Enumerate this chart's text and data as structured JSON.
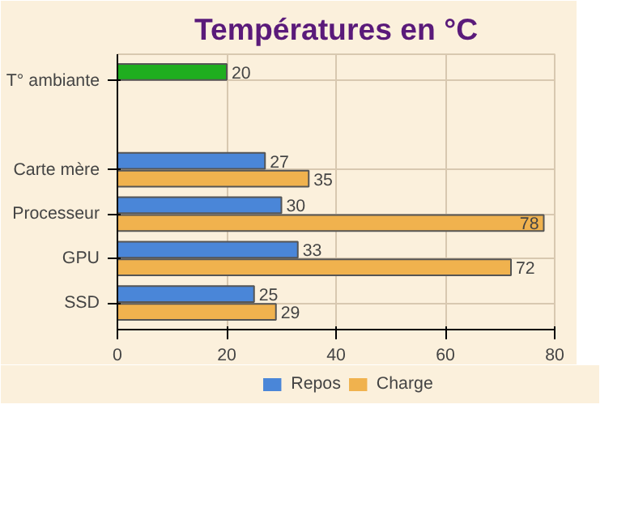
{
  "chart_data": {
    "type": "bar",
    "orientation": "horizontal",
    "title": "Températures en °C",
    "categories": [
      "T° ambiante",
      null,
      "Carte mère",
      "Processeur",
      "GPU",
      "SSD"
    ],
    "series": [
      {
        "name": "Repos",
        "color": "#4a86d8",
        "colors": [
          "#1fae1f",
          null,
          "#4a86d8",
          "#4a86d8",
          "#4a86d8",
          "#4a86d8"
        ],
        "values": [
          20,
          null,
          27,
          30,
          33,
          25
        ]
      },
      {
        "name": "Charge",
        "color": "#f0b24e",
        "values": [
          null,
          null,
          35,
          78,
          72,
          29
        ]
      }
    ],
    "xlim": [
      0,
      80
    ],
    "xticks": [
      0,
      20,
      40,
      60,
      80
    ],
    "grid": true,
    "legend": "bottom",
    "data_labels": true
  }
}
